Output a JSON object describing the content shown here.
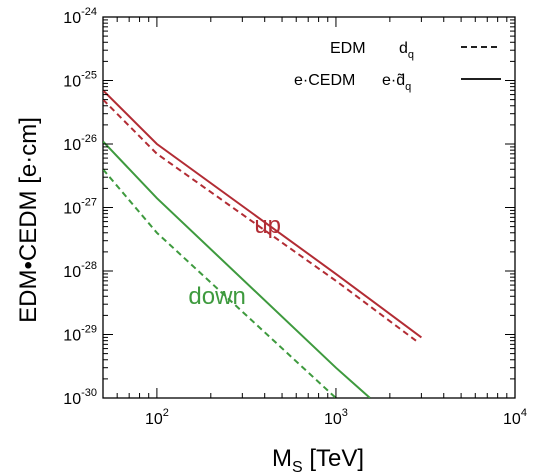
{
  "chart_data": {
    "type": "line",
    "title": "",
    "xlabel": {
      "main": "M",
      "sub": "S",
      "rest": " [TeV]"
    },
    "ylabel": "EDM•CEDM  [e·cm]",
    "x_scale": "log",
    "y_scale": "log",
    "xlim": [
      50,
      10000
    ],
    "ylim": [
      1e-30,
      1e-24
    ],
    "x_ticks": [
      {
        "value": 100,
        "base": "10",
        "exp": "2"
      },
      {
        "value": 1000,
        "base": "10",
        "exp": "3"
      },
      {
        "value": 10000,
        "base": "10",
        "exp": "4"
      }
    ],
    "y_ticks": [
      {
        "value": 1e-30,
        "base": "10",
        "exp": "-30"
      },
      {
        "value": 1e-29,
        "base": "10",
        "exp": "-29"
      },
      {
        "value": 1e-28,
        "base": "10",
        "exp": "-28"
      },
      {
        "value": 1e-27,
        "base": "10",
        "exp": "-27"
      },
      {
        "value": 1e-26,
        "base": "10",
        "exp": "-26"
      },
      {
        "value": 1e-25,
        "base": "10",
        "exp": "-25"
      },
      {
        "value": 1e-24,
        "base": "10",
        "exp": "-24"
      }
    ],
    "grid": false,
    "legend_position": "top-right",
    "legend": [
      {
        "label": "EDM",
        "symbol": "d",
        "symbol_sub": "q",
        "style": "dashed"
      },
      {
        "label": "e·CEDM",
        "symbol": "e·d̃",
        "symbol_sub": "q",
        "style": "solid"
      }
    ],
    "series": [
      {
        "group": "up",
        "kind": "e·CEDM",
        "style": "solid",
        "color": "#b22c34",
        "x": [
          50,
          100,
          1000,
          3000
        ],
        "y": [
          7e-26,
          1e-26,
          9e-29,
          9e-30
        ]
      },
      {
        "group": "up",
        "kind": "EDM",
        "style": "dashed",
        "color": "#b22c34",
        "x": [
          50,
          100,
          1000,
          2800
        ],
        "y": [
          5e-26,
          7e-27,
          7e-29,
          8e-30
        ]
      },
      {
        "group": "down",
        "kind": "e·CEDM",
        "style": "solid",
        "color": "#3e9a3e",
        "x": [
          50,
          100,
          1000,
          1550
        ],
        "y": [
          1.1e-26,
          1.4e-27,
          3e-30,
          1e-30
        ]
      },
      {
        "group": "down",
        "kind": "EDM",
        "style": "dashed",
        "color": "#3e9a3e",
        "x": [
          50,
          100,
          1000
        ],
        "y": [
          4e-27,
          4e-28,
          1e-30
        ]
      }
    ],
    "annotations": [
      {
        "text": "up",
        "color": "#b22c34",
        "x": 350,
        "y": 4e-28
      },
      {
        "text": "down",
        "color": "#3e9a3e",
        "x": 150,
        "y": 3e-29
      }
    ]
  }
}
